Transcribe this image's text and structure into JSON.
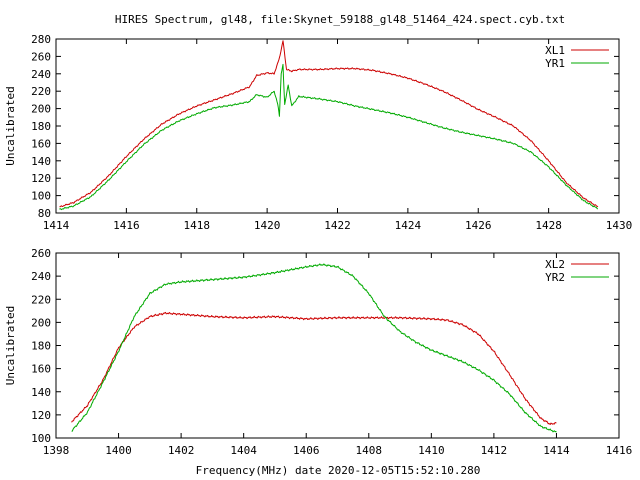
{
  "title": "HIRES Spectrum, gl48, file:Skynet_59188_gl48_51464_424.spect.cyb.txt",
  "xlabel": "Frequency(MHz) date 2020-12-05T15:52:10.280",
  "colors": {
    "red": "#cc0000",
    "green": "#00aa00"
  },
  "chart_data": [
    {
      "type": "line",
      "ylabel": "Uncalibrated",
      "xlim": [
        1414,
        1430
      ],
      "ylim": [
        80,
        280
      ],
      "x_ticks": [
        1414,
        1416,
        1418,
        1420,
        1422,
        1424,
        1426,
        1428,
        1430
      ],
      "y_ticks": [
        80,
        100,
        120,
        140,
        160,
        180,
        200,
        220,
        240,
        260,
        280
      ],
      "legend_position": "top-right",
      "series": [
        {
          "name": "XL1",
          "color": "#cc0000",
          "points": [
            [
              1414.1,
              87
            ],
            [
              1414.5,
              92
            ],
            [
              1415,
              104
            ],
            [
              1415.5,
              123
            ],
            [
              1416,
              145
            ],
            [
              1416.5,
              165
            ],
            [
              1417,
              182
            ],
            [
              1417.5,
              194
            ],
            [
              1418,
              203
            ],
            [
              1418.5,
              210
            ],
            [
              1419,
              217
            ],
            [
              1419.5,
              225
            ],
            [
              1419.7,
              238
            ],
            [
              1420,
              241
            ],
            [
              1420.2,
              240
            ],
            [
              1420.35,
              258
            ],
            [
              1420.45,
              278
            ],
            [
              1420.55,
              245
            ],
            [
              1420.7,
              243
            ],
            [
              1420.9,
              245
            ],
            [
              1421.5,
              245
            ],
            [
              1422,
              246
            ],
            [
              1422.5,
              246
            ],
            [
              1423,
              244
            ],
            [
              1423.5,
              240
            ],
            [
              1424,
              235
            ],
            [
              1424.5,
              228
            ],
            [
              1425,
              220
            ],
            [
              1425.5,
              210
            ],
            [
              1426,
              199
            ],
            [
              1426.5,
              190
            ],
            [
              1427,
              180
            ],
            [
              1427.5,
              163
            ],
            [
              1428,
              140
            ],
            [
              1428.5,
              115
            ],
            [
              1429,
              97
            ],
            [
              1429.4,
              87
            ]
          ]
        },
        {
          "name": "YR1",
          "color": "#00aa00",
          "points": [
            [
              1414.1,
              84
            ],
            [
              1414.5,
              88
            ],
            [
              1415,
              99
            ],
            [
              1415.5,
              118
            ],
            [
              1416,
              139
            ],
            [
              1416.5,
              159
            ],
            [
              1417,
              175
            ],
            [
              1417.5,
              186
            ],
            [
              1418,
              194
            ],
            [
              1418.5,
              201
            ],
            [
              1419,
              204
            ],
            [
              1419.5,
              208
            ],
            [
              1419.7,
              216
            ],
            [
              1420,
              213
            ],
            [
              1420.2,
              220
            ],
            [
              1420.3,
              205
            ],
            [
              1420.35,
              192
            ],
            [
              1420.4,
              240
            ],
            [
              1420.45,
              250
            ],
            [
              1420.5,
              205
            ],
            [
              1420.6,
              227
            ],
            [
              1420.7,
              203
            ],
            [
              1420.9,
              214
            ],
            [
              1421.5,
              211
            ],
            [
              1422,
              208
            ],
            [
              1422.5,
              203
            ],
            [
              1423,
              199
            ],
            [
              1423.5,
              195
            ],
            [
              1424,
              190
            ],
            [
              1424.5,
              184
            ],
            [
              1425,
              178
            ],
            [
              1425.5,
              173
            ],
            [
              1426,
              169
            ],
            [
              1426.5,
              165
            ],
            [
              1427,
              160
            ],
            [
              1427.5,
              150
            ],
            [
              1428,
              133
            ],
            [
              1428.5,
              112
            ],
            [
              1429,
              94
            ],
            [
              1429.4,
              85
            ]
          ]
        }
      ]
    },
    {
      "type": "line",
      "ylabel": "Uncalibrated",
      "xlim": [
        1398,
        1416
      ],
      "ylim": [
        100,
        260
      ],
      "x_ticks": [
        1398,
        1400,
        1402,
        1404,
        1406,
        1408,
        1410,
        1412,
        1414,
        1416
      ],
      "y_ticks": [
        100,
        120,
        140,
        160,
        180,
        200,
        220,
        240,
        260
      ],
      "legend_position": "top-right",
      "series": [
        {
          "name": "XL2",
          "color": "#cc0000",
          "points": [
            [
              1398.5,
              114
            ],
            [
              1399,
              128
            ],
            [
              1399.5,
              150
            ],
            [
              1400,
              178
            ],
            [
              1400.5,
              196
            ],
            [
              1401,
              205
            ],
            [
              1401.5,
              208
            ],
            [
              1402,
              207
            ],
            [
              1403,
              205
            ],
            [
              1404,
              204
            ],
            [
              1405,
              205
            ],
            [
              1406,
              203
            ],
            [
              1407,
              204
            ],
            [
              1408,
              204
            ],
            [
              1409,
              204
            ],
            [
              1410,
              203
            ],
            [
              1410.5,
              202
            ],
            [
              1411,
              198
            ],
            [
              1411.5,
              190
            ],
            [
              1412,
              175
            ],
            [
              1412.5,
              155
            ],
            [
              1413,
              134
            ],
            [
              1413.5,
              117
            ],
            [
              1413.8,
              112
            ],
            [
              1414,
              113
            ]
          ]
        },
        {
          "name": "YR2",
          "color": "#00aa00",
          "points": [
            [
              1398.5,
              106
            ],
            [
              1399,
              122
            ],
            [
              1399.5,
              148
            ],
            [
              1400,
              175
            ],
            [
              1400.5,
              205
            ],
            [
              1401,
              225
            ],
            [
              1401.5,
              233
            ],
            [
              1402,
              235
            ],
            [
              1403,
              237
            ],
            [
              1404,
              239
            ],
            [
              1405,
              243
            ],
            [
              1406,
              248
            ],
            [
              1406.5,
              250
            ],
            [
              1407,
              248
            ],
            [
              1407.5,
              240
            ],
            [
              1408,
              225
            ],
            [
              1408.5,
              205
            ],
            [
              1409,
              192
            ],
            [
              1409.5,
              183
            ],
            [
              1410,
              176
            ],
            [
              1410.5,
              171
            ],
            [
              1411,
              166
            ],
            [
              1411.5,
              159
            ],
            [
              1412,
              150
            ],
            [
              1412.5,
              138
            ],
            [
              1413,
              122
            ],
            [
              1413.5,
              110
            ],
            [
              1414,
              105
            ]
          ]
        }
      ]
    }
  ]
}
